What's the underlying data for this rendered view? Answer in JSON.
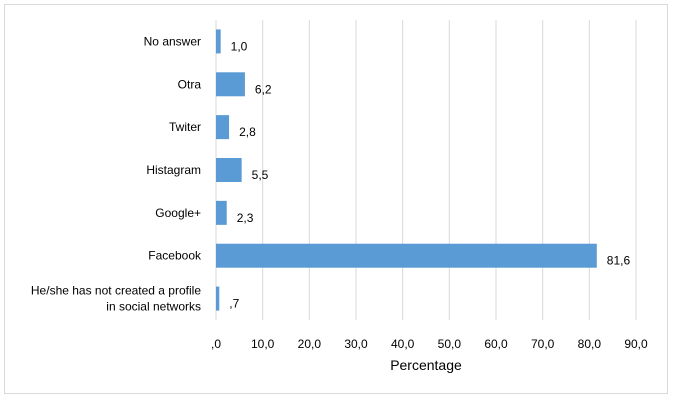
{
  "chart_data": {
    "type": "bar",
    "orientation": "horizontal",
    "categories": [
      "No answer",
      "Otra",
      "Twiter",
      "Histagram",
      "Google+",
      "Facebook",
      "He/she has not created a profile in social networks"
    ],
    "category_lines": [
      [
        "No answer"
      ],
      [
        "Otra"
      ],
      [
        "Twiter"
      ],
      [
        "Histagram"
      ],
      [
        "Google+"
      ],
      [
        "Facebook"
      ],
      [
        "He/she has not created a profile",
        "in social networks"
      ]
    ],
    "values": [
      1.0,
      6.2,
      2.8,
      5.5,
      2.3,
      81.6,
      0.7
    ],
    "data_labels": [
      "1,0",
      "6,2",
      "2,8",
      "5,5",
      "2,3",
      "81,6",
      ",7"
    ],
    "xlabel": "Percentage",
    "xlim": [
      0,
      90
    ],
    "xticks": [
      ",0",
      "10,0",
      "20,0",
      "30,0",
      "40,0",
      "50,0",
      "60,0",
      "70,0",
      "80,0",
      "90,0"
    ],
    "grid": "vertical",
    "legend": "none",
    "bar_color": "#5b9bd5",
    "grid_color": "#d9d9d9"
  }
}
